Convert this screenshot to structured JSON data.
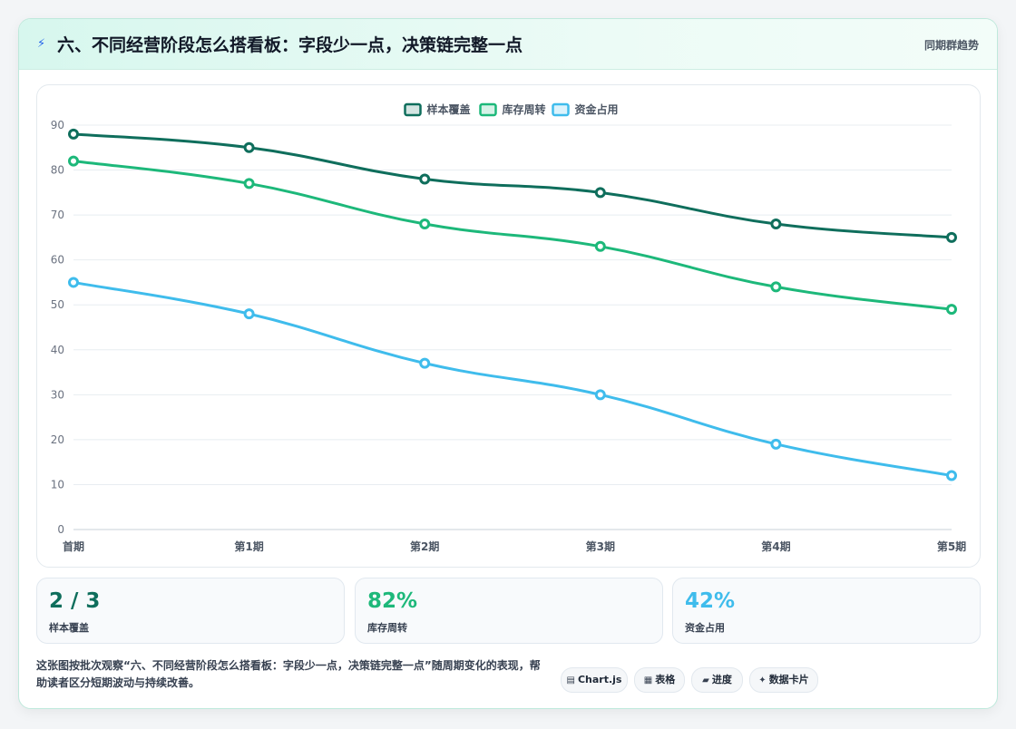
{
  "header": {
    "icon": "lightning-icon",
    "title": "六、不同经营阶段怎么搭看板：字段少一点，决策链完整一点",
    "badge": "同期群趋势"
  },
  "chart_data": {
    "type": "line",
    "categories": [
      "首期",
      "第1期",
      "第2期",
      "第3期",
      "第4期",
      "第5期"
    ],
    "series": [
      {
        "name": "样本覆盖",
        "color": "#0f6e5c",
        "values": [
          88,
          85,
          78,
          75,
          68,
          65
        ]
      },
      {
        "name": "库存周转",
        "color": "#1db87a",
        "values": [
          82,
          77,
          68,
          63,
          54,
          49
        ]
      },
      {
        "name": "资金占用",
        "color": "#3fbcec",
        "values": [
          55,
          48,
          37,
          30,
          19,
          12
        ]
      }
    ],
    "ylim": [
      0,
      90
    ],
    "yticks": [
      0,
      10,
      20,
      30,
      40,
      50,
      60,
      70,
      80,
      90
    ],
    "grid": true,
    "legend_position": "top-center"
  },
  "kpis": [
    {
      "value": "2 / 3",
      "label": "样本覆盖",
      "color": "#0f6e5c"
    },
    {
      "value": "82%",
      "label": "库存周转",
      "color": "#1db87a"
    },
    {
      "value": "42%",
      "label": "资金占用",
      "color": "#3fbcec"
    }
  ],
  "footer": {
    "description": "这张图按批次观察“六、不同经营阶段怎么搭看板：字段少一点，决策链完整一点”随周期变化的表现，帮助读者区分短期波动与持续改善。"
  },
  "chips": [
    {
      "icon": "▤",
      "icon_name": "chart-icon",
      "label": "Chart.js"
    },
    {
      "icon": "▦",
      "icon_name": "table-icon",
      "label": "表格"
    },
    {
      "icon": "▰",
      "icon_name": "progress-icon",
      "label": "进度"
    },
    {
      "icon": "✦",
      "icon_name": "sparkle-icon",
      "label": "数据卡片"
    }
  ]
}
